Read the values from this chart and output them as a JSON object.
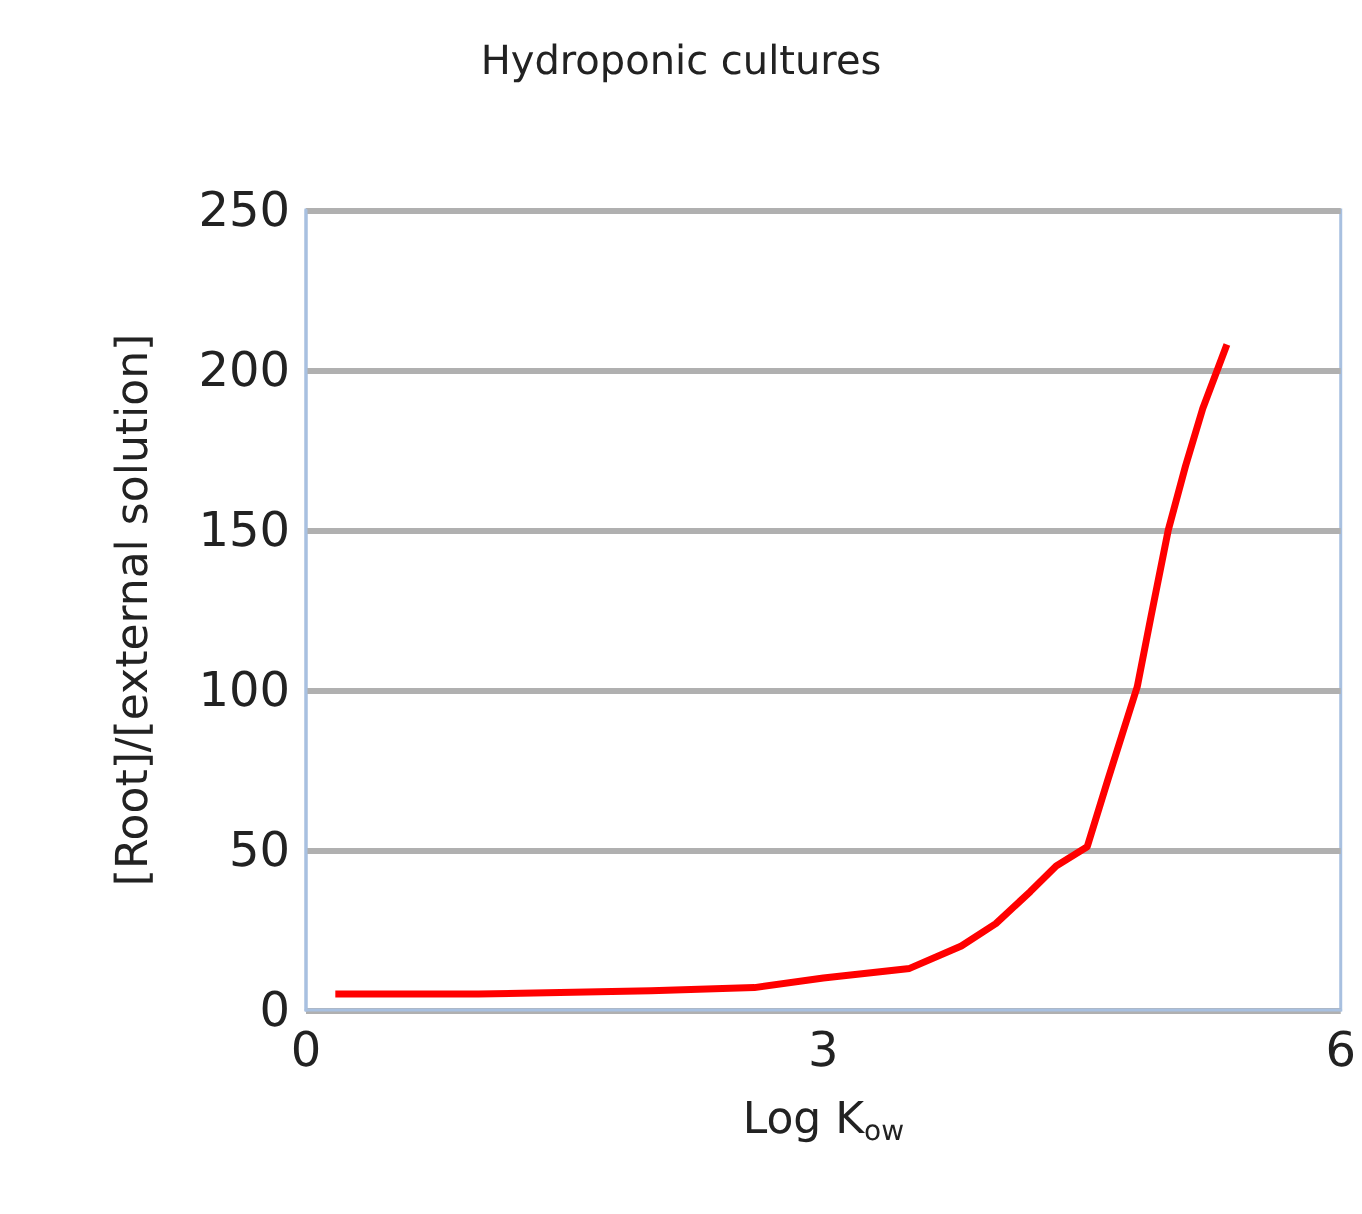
{
  "chart_data": {
    "type": "line",
    "title": "Hydroponic cultures",
    "xlabel": "Log K$_{ow}$",
    "ylabel": "[Root]/[external solution]",
    "x": [
      0.17,
      1.0,
      2.0,
      2.6,
      3.0,
      3.5,
      3.8,
      4.0,
      4.2,
      4.35,
      4.53,
      4.65,
      4.82,
      4.9,
      5.0,
      5.1,
      5.2,
      5.34
    ],
    "series": [
      {
        "color": "#ff0000",
        "values": [
          5,
          5,
          6,
          7,
          10,
          13,
          20,
          27,
          37,
          45,
          51,
          72,
          101,
          123,
          150,
          170,
          188,
          208
        ]
      }
    ],
    "xlim": [
      0,
      6
    ],
    "xticks": [
      0,
      3,
      6
    ],
    "ylim": [
      0,
      250
    ],
    "yticks": [
      0,
      50,
      100,
      150,
      200,
      250
    ],
    "grid": "y",
    "marker": "none",
    "line_style": "solid"
  }
}
